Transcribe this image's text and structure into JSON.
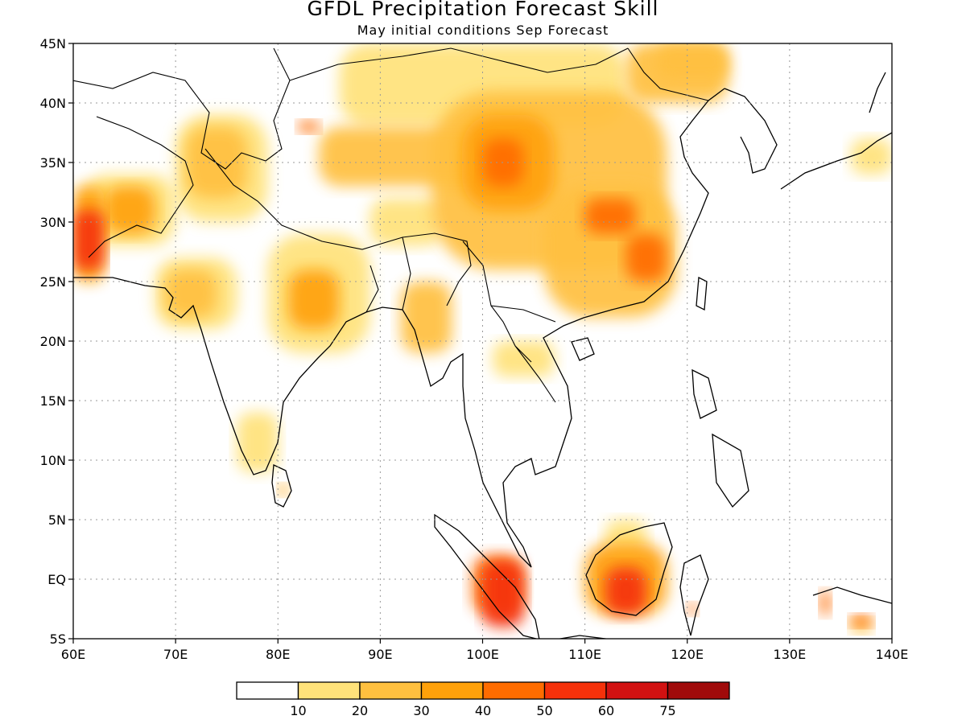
{
  "title": "GFDL Precipitation Forecast Skill",
  "subtitle": "May initial conditions  Sep Forecast",
  "map": {
    "lon_ticks": [
      "60E",
      "70E",
      "80E",
      "90E",
      "100E",
      "110E",
      "120E",
      "130E",
      "140E"
    ],
    "lat_ticks": [
      "45N",
      "40N",
      "35N",
      "30N",
      "25N",
      "20N",
      "15N",
      "10N",
      "5N",
      "EQ",
      "5S"
    ],
    "lon_range": [
      60,
      140
    ],
    "lat_range": [
      -5,
      45
    ],
    "grid": "dotted",
    "skill_regions": [
      {
        "lon": [
          60,
          63
        ],
        "lat": [
          26,
          31
        ],
        "value": 55
      },
      {
        "lon": [
          60,
          63
        ],
        "lat": [
          25,
          33
        ],
        "value": 35
      },
      {
        "lon": [
          63,
          68
        ],
        "lat": [
          29,
          33
        ],
        "value": 32
      },
      {
        "lon": [
          61,
          70
        ],
        "lat": [
          28,
          34
        ],
        "value": 15
      },
      {
        "lon": [
          69,
          74
        ],
        "lat": [
          22,
          26
        ],
        "value": 25
      },
      {
        "lon": [
          68,
          76
        ],
        "lat": [
          21,
          27
        ],
        "value": 12
      },
      {
        "lon": [
          71,
          77
        ],
        "lat": [
          32,
          38
        ],
        "value": 25
      },
      {
        "lon": [
          70,
          79
        ],
        "lat": [
          30,
          39
        ],
        "value": 12
      },
      {
        "lon": [
          81,
          86
        ],
        "lat": [
          21,
          26
        ],
        "value": 30
      },
      {
        "lon": [
          79,
          89
        ],
        "lat": [
          19,
          29
        ],
        "value": 15
      },
      {
        "lon": [
          89,
          96
        ],
        "lat": [
          28,
          32
        ],
        "value": 15
      },
      {
        "lon": [
          92,
          97
        ],
        "lat": [
          19,
          25
        ],
        "value": 20
      },
      {
        "lon": [
          82,
          84
        ],
        "lat": [
          37.5,
          38.5
        ],
        "value": 45
      },
      {
        "lon": [
          84,
          102
        ],
        "lat": [
          33,
          38
        ],
        "value": 22
      },
      {
        "lon": [
          100,
          104
        ],
        "lat": [
          33,
          37
        ],
        "value": 45
      },
      {
        "lon": [
          98,
          107
        ],
        "lat": [
          31,
          39
        ],
        "value": 32
      },
      {
        "lon": [
          95,
          118
        ],
        "lat": [
          26,
          41
        ],
        "value": 20
      },
      {
        "lon": [
          110,
          115
        ],
        "lat": [
          29,
          32
        ],
        "value": 42
      },
      {
        "lon": [
          114,
          118
        ],
        "lat": [
          25,
          29
        ],
        "value": 45
      },
      {
        "lon": [
          106,
          119
        ],
        "lat": [
          22,
          33
        ],
        "value": 28
      },
      {
        "lon": [
          86,
          114
        ],
        "lat": [
          38,
          45
        ],
        "value": 12
      },
      {
        "lon": [
          114,
          124
        ],
        "lat": [
          40,
          45
        ],
        "value": 20
      },
      {
        "lon": [
          117,
          124
        ],
        "lat": [
          42,
          45
        ],
        "value": 28
      },
      {
        "lon": [
          101,
          107
        ],
        "lat": [
          17,
          20
        ],
        "value": 12
      },
      {
        "lon": [
          76,
          80
        ],
        "lat": [
          9,
          14
        ],
        "value": 18
      },
      {
        "lon": [
          80,
          81
        ],
        "lat": [
          7,
          8
        ],
        "value": 35
      },
      {
        "lon": [
          100,
          104
        ],
        "lat": [
          -4,
          1.5
        ],
        "value": 55
      },
      {
        "lon": [
          99,
          104
        ],
        "lat": [
          -3,
          2
        ],
        "value": 45
      },
      {
        "lon": [
          112,
          116
        ],
        "lat": [
          -3,
          1
        ],
        "value": 55
      },
      {
        "lon": [
          110,
          118
        ],
        "lat": [
          -3,
          3
        ],
        "value": 30
      },
      {
        "lon": [
          112,
          116
        ],
        "lat": [
          2,
          5
        ],
        "value": 15
      },
      {
        "lon": [
          120,
          121
        ],
        "lat": [
          -3,
          -2
        ],
        "value": 45
      },
      {
        "lon": [
          133,
          134
        ],
        "lat": [
          -3,
          -1
        ],
        "value": 45
      },
      {
        "lon": [
          136,
          138
        ],
        "lat": [
          -4,
          -3
        ],
        "value": 45
      },
      {
        "lon": [
          136,
          138
        ],
        "lat": [
          -4.5,
          -3.3
        ],
        "value": 25
      },
      {
        "lon": [
          136,
          140
        ],
        "lat": [
          34,
          37
        ],
        "value": 15
      }
    ]
  },
  "legend": {
    "labels": [
      "10",
      "20",
      "30",
      "40",
      "50",
      "60",
      "75"
    ],
    "colors": [
      "#ffffff",
      "#ffe27a",
      "#ffc03f",
      "#ffa10a",
      "#ff6c00",
      "#f5310a",
      "#d21111",
      "#a00a0a"
    ]
  }
}
